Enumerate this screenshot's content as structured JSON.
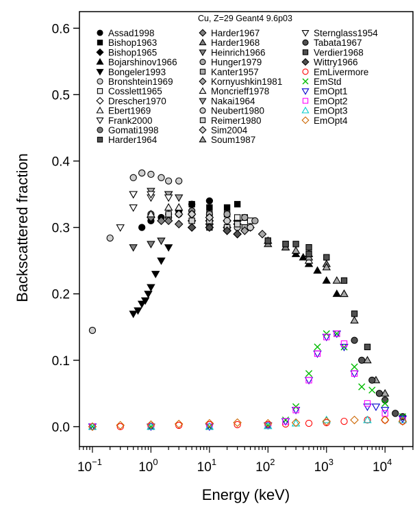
{
  "chart_data": {
    "type": "scatter",
    "title": "Cu, Z=29 Geant4 9.6p03",
    "xlabel": "Energy (keV)",
    "ylabel": "Backscattered fraction",
    "xscale": "log",
    "xlim": [
      0.06,
      30000
    ],
    "ylim": [
      -0.03,
      0.625
    ],
    "xticks": [
      {
        "value": 0.1,
        "base": "10",
        "exp": "−1"
      },
      {
        "value": 1,
        "base": "10",
        "exp": "0"
      },
      {
        "value": 10,
        "base": "10",
        "exp": "1"
      },
      {
        "value": 100,
        "base": "10",
        "exp": "2"
      },
      {
        "value": 1000,
        "base": "10",
        "exp": "3"
      },
      {
        "value": 10000,
        "base": "10",
        "exp": "4"
      }
    ],
    "yticks": [
      "0.0",
      "0.1",
      "0.2",
      "0.3",
      "0.4",
      "0.5",
      "0.6"
    ],
    "grid": false,
    "legend_position": "top",
    "series": [
      {
        "name": "Assad1998",
        "marker": "circle",
        "fill": "#000000",
        "stroke": "#000000",
        "points": [
          [
            0.7,
            0.3
          ],
          [
            1,
            0.31
          ],
          [
            1.5,
            0.315
          ],
          [
            2,
            0.32
          ],
          [
            3,
            0.325
          ],
          [
            5,
            0.335
          ],
          [
            10,
            0.34
          ]
        ]
      },
      {
        "name": "Bishop1963",
        "marker": "square",
        "fill": "#000000",
        "stroke": "#000000",
        "points": [
          [
            5,
            0.335
          ],
          [
            10,
            0.33
          ],
          [
            20,
            0.33
          ],
          [
            30,
            0.335
          ]
        ]
      },
      {
        "name": "Bishop1965",
        "marker": "diamond",
        "fill": "#000000",
        "stroke": "#000000",
        "points": [
          [
            5,
            0.31
          ],
          [
            10,
            0.31
          ],
          [
            20,
            0.31
          ],
          [
            30,
            0.31
          ]
        ]
      },
      {
        "name": "Bojarshinov1966",
        "marker": "triangle-up",
        "fill": "#000000",
        "stroke": "#000000",
        "points": [
          [
            300,
            0.26
          ],
          [
            400,
            0.255
          ],
          [
            500,
            0.245
          ],
          [
            700,
            0.235
          ],
          [
            1000,
            0.22
          ],
          [
            1500,
            0.2
          ]
        ]
      },
      {
        "name": "Bongeler1993",
        "marker": "triangle-down",
        "fill": "#000000",
        "stroke": "#000000",
        "points": [
          [
            0.5,
            0.17
          ],
          [
            0.6,
            0.175
          ],
          [
            0.7,
            0.185
          ],
          [
            0.8,
            0.19
          ],
          [
            0.9,
            0.2
          ],
          [
            1,
            0.21
          ],
          [
            1.2,
            0.23
          ],
          [
            1.5,
            0.25
          ],
          [
            2,
            0.27
          ]
        ]
      },
      {
        "name": "Bronshtein1969",
        "marker": "circle",
        "fill": "#cfcfcf",
        "stroke": "#000000",
        "points": [
          [
            0.1,
            0.145
          ],
          [
            0.2,
            0.284
          ],
          [
            0.5,
            0.375
          ],
          [
            0.7,
            0.382
          ],
          [
            1,
            0.38
          ],
          [
            1.5,
            0.375
          ],
          [
            2,
            0.37
          ],
          [
            3,
            0.37
          ]
        ]
      },
      {
        "name": "Cosslett1965",
        "marker": "square",
        "fill": "#ededed",
        "stroke": "#000000",
        "points": [
          [
            10,
            0.32
          ],
          [
            20,
            0.32
          ],
          [
            30,
            0.315
          ],
          [
            40,
            0.315
          ],
          [
            50,
            0.31
          ]
        ]
      },
      {
        "name": "Drescher1970",
        "marker": "diamond",
        "fill": "#ffffff",
        "stroke": "#000000",
        "points": [
          [
            10,
            0.305
          ],
          [
            20,
            0.31
          ],
          [
            30,
            0.305
          ],
          [
            50,
            0.3
          ]
        ]
      },
      {
        "name": "Ebert1969",
        "marker": "triangle-up",
        "fill": "#ffffff",
        "stroke": "#000000",
        "points": [
          [
            100,
            0.28
          ],
          [
            200,
            0.27
          ],
          [
            500,
            0.25
          ]
        ]
      },
      {
        "name": "Frank2000",
        "marker": "triangle-down",
        "fill": "#ffffff",
        "stroke": "#000000",
        "points": [
          [
            0.3,
            0.3
          ],
          [
            0.5,
            0.33
          ],
          [
            1,
            0.345
          ],
          [
            2,
            0.35
          ]
        ]
      },
      {
        "name": "Gomati1998",
        "marker": "circle",
        "fill": "#808080",
        "stroke": "#000000",
        "points": [
          [
            1,
            0.32
          ],
          [
            2,
            0.315
          ],
          [
            3,
            0.32
          ],
          [
            5,
            0.325
          ]
        ]
      },
      {
        "name": "Harder1964",
        "marker": "square",
        "fill": "#505050",
        "stroke": "#000000",
        "points": [
          [
            100,
            0.28
          ],
          [
            200,
            0.275
          ],
          [
            300,
            0.275
          ],
          [
            500,
            0.27
          ],
          [
            1000,
            0.255
          ],
          [
            2000,
            0.22
          ],
          [
            3000,
            0.17
          ],
          [
            5000,
            0.12
          ]
        ]
      },
      {
        "name": "Harder1967",
        "marker": "diamond",
        "fill": "#808080",
        "stroke": "#000000",
        "points": [
          [
            1,
            0.315
          ],
          [
            1.5,
            0.31
          ],
          [
            2,
            0.31
          ],
          [
            3,
            0.305
          ],
          [
            5,
            0.3
          ],
          [
            10,
            0.3
          ],
          [
            20,
            0.295
          ],
          [
            30,
            0.29
          ]
        ]
      },
      {
        "name": "Harder1968",
        "marker": "triangle-up",
        "fill": "#808080",
        "stroke": "#000000",
        "points": [
          [
            100,
            0.275
          ],
          [
            200,
            0.27
          ],
          [
            500,
            0.26
          ],
          [
            1000,
            0.245
          ],
          [
            2000,
            0.2
          ]
        ]
      },
      {
        "name": "Heinrich1966",
        "marker": "triangle-down",
        "fill": "#808080",
        "stroke": "#000000",
        "points": [
          [
            0.5,
            0.27
          ],
          [
            1,
            0.275
          ],
          [
            1.5,
            0.28
          ]
        ]
      },
      {
        "name": "Hunger1979",
        "marker": "circle",
        "fill": "#a9a9a9",
        "stroke": "#000000",
        "points": [
          [
            5,
            0.32
          ],
          [
            10,
            0.32
          ],
          [
            20,
            0.32
          ],
          [
            40,
            0.315
          ],
          [
            60,
            0.31
          ]
        ]
      },
      {
        "name": "Kanter1957",
        "marker": "square",
        "fill": "#a9a9a9",
        "stroke": "#000000",
        "points": [
          [
            10,
            0.3
          ],
          [
            20,
            0.3
          ],
          [
            40,
            0.3
          ]
        ]
      },
      {
        "name": "Kornyushkin1981",
        "marker": "diamond",
        "fill": "#a9a9a9",
        "stroke": "#000000",
        "points": [
          [
            20,
            0.3
          ],
          [
            40,
            0.295
          ],
          [
            80,
            0.29
          ]
        ]
      },
      {
        "name": "Moncrieff1978",
        "marker": "triangle-up",
        "fill": "#ededed",
        "stroke": "#000000",
        "points": [
          [
            1,
            0.32
          ],
          [
            2,
            0.33
          ],
          [
            3,
            0.33
          ]
        ]
      },
      {
        "name": "Nakai1964",
        "marker": "triangle-down",
        "fill": "#a9a9a9",
        "stroke": "#000000",
        "points": [
          [
            0.5,
            0.35
          ],
          [
            1,
            0.355
          ],
          [
            2,
            0.35
          ],
          [
            3,
            0.345
          ]
        ]
      },
      {
        "name": "Neubert1980",
        "marker": "circle",
        "fill": "#cfcfcf",
        "stroke": "#000000",
        "points": [
          [
            10,
            0.315
          ],
          [
            20,
            0.31
          ],
          [
            30,
            0.3
          ],
          [
            50,
            0.3
          ]
        ]
      },
      {
        "name": "Reimer1980",
        "marker": "square",
        "fill": "#cfcfcf",
        "stroke": "#000000",
        "points": [
          [
            2,
            0.32
          ],
          [
            5,
            0.31
          ],
          [
            10,
            0.31
          ],
          [
            20,
            0.3
          ],
          [
            30,
            0.305
          ]
        ]
      },
      {
        "name": "Sim2004",
        "marker": "diamond",
        "fill": "#cfcfcf",
        "stroke": "#000000",
        "points": [
          [
            3,
            0.32
          ],
          [
            5,
            0.32
          ],
          [
            10,
            0.315
          ]
        ]
      },
      {
        "name": "Soum1987",
        "marker": "triangle-up",
        "fill": "#a9a9a9",
        "stroke": "#000000",
        "points": [
          [
            300,
            0.265
          ],
          [
            500,
            0.255
          ],
          [
            1000,
            0.24
          ],
          [
            1500,
            0.22
          ],
          [
            2000,
            0.2
          ],
          [
            3000,
            0.16
          ],
          [
            5000,
            0.1
          ],
          [
            7000,
            0.07
          ],
          [
            10000,
            0.05
          ]
        ]
      },
      {
        "name": "Sternglass1954",
        "marker": "triangle-down",
        "fill": "#ffffff",
        "stroke": "#000000",
        "points": [
          [
            0.5,
            0.35
          ],
          [
            1,
            0.35
          ],
          [
            2,
            0.345
          ]
        ]
      },
      {
        "name": "Tabata1967",
        "marker": "circle",
        "fill": "#505050",
        "stroke": "#000000",
        "points": [
          [
            3000,
            0.13
          ],
          [
            4000,
            0.1
          ],
          [
            6000,
            0.07
          ],
          [
            8000,
            0.05
          ],
          [
            10000,
            0.04
          ],
          [
            15000,
            0.02
          ],
          [
            20000,
            0.015
          ]
        ]
      },
      {
        "name": "Verdier1968",
        "marker": "square",
        "fill": "#505050",
        "stroke": "#000000",
        "points": [
          [
            100,
            0.28
          ],
          [
            200,
            0.275
          ],
          [
            500,
            0.26
          ]
        ]
      },
      {
        "name": "Wittry1966",
        "marker": "diamond",
        "fill": "#505050",
        "stroke": "#000000",
        "points": [
          [
            5,
            0.3
          ],
          [
            10,
            0.3
          ],
          [
            20,
            0.295
          ],
          [
            30,
            0.29
          ]
        ]
      },
      {
        "name": "EmLivermore",
        "marker": "circle-open",
        "fill": "none",
        "stroke": "#ff0000",
        "points": [
          [
            0.1,
            0
          ],
          [
            0.3,
            0
          ],
          [
            1,
            0.001
          ],
          [
            3,
            0.002
          ],
          [
            10,
            0.003
          ],
          [
            30,
            0.003
          ],
          [
            100,
            0.003
          ],
          [
            200,
            0.004
          ],
          [
            500,
            0.005
          ],
          [
            1000,
            0.006
          ],
          [
            2000,
            0.008
          ],
          [
            5000,
            0.01
          ],
          [
            10000,
            0.01
          ],
          [
            20000,
            0.008
          ]
        ]
      },
      {
        "name": "EmStd",
        "marker": "x",
        "fill": "none",
        "stroke": "#00bb00",
        "points": [
          [
            0.1,
            0
          ],
          [
            1,
            0
          ],
          [
            10,
            0
          ],
          [
            100,
            0.002
          ],
          [
            200,
            0.01
          ],
          [
            300,
            0.03
          ],
          [
            500,
            0.08
          ],
          [
            700,
            0.12
          ],
          [
            1000,
            0.14
          ],
          [
            1500,
            0.14
          ],
          [
            2000,
            0.12
          ],
          [
            3000,
            0.09
          ],
          [
            4000,
            0.06
          ],
          [
            6000,
            0.055
          ],
          [
            10000,
            0.035
          ],
          [
            20000,
            0.015
          ]
        ]
      },
      {
        "name": "EmOpt1",
        "marker": "triangle-down-open",
        "fill": "none",
        "stroke": "#0000cc",
        "points": [
          [
            0.1,
            0
          ],
          [
            1,
            0
          ],
          [
            10,
            0
          ],
          [
            100,
            0.002
          ],
          [
            200,
            0.008
          ],
          [
            300,
            0.025
          ],
          [
            500,
            0.07
          ],
          [
            700,
            0.11
          ],
          [
            1000,
            0.135
          ],
          [
            1500,
            0.14
          ],
          [
            2000,
            0.12
          ],
          [
            3000,
            0.08
          ],
          [
            5000,
            0.03
          ],
          [
            7000,
            0.03
          ],
          [
            10000,
            0.025
          ],
          [
            20000,
            0.012
          ]
        ]
      },
      {
        "name": "EmOpt2",
        "marker": "square-open",
        "fill": "none",
        "stroke": "#ff00ff",
        "points": [
          [
            0.1,
            0
          ],
          [
            1,
            0
          ],
          [
            10,
            0
          ],
          [
            100,
            0.002
          ],
          [
            200,
            0.008
          ],
          [
            300,
            0.025
          ],
          [
            500,
            0.07
          ],
          [
            700,
            0.11
          ],
          [
            1000,
            0.135
          ],
          [
            1500,
            0.14
          ],
          [
            2000,
            0.125
          ],
          [
            3000,
            0.08
          ],
          [
            5000,
            0.035
          ],
          [
            10000,
            0.02
          ],
          [
            20000,
            0.01
          ]
        ]
      },
      {
        "name": "EmOpt3",
        "marker": "triangle-up-open",
        "fill": "none",
        "stroke": "#00cccc",
        "points": [
          [
            0.1,
            0
          ],
          [
            1,
            0
          ],
          [
            10,
            0
          ],
          [
            100,
            0.001
          ],
          [
            300,
            0.005
          ],
          [
            1000,
            0.01
          ],
          [
            5000,
            0.01
          ],
          [
            20000,
            0.01
          ]
        ]
      },
      {
        "name": "EmOpt4",
        "marker": "diamond-open",
        "fill": "none",
        "stroke": "#cc6600",
        "points": [
          [
            0.1,
            0
          ],
          [
            0.3,
            0.002
          ],
          [
            1,
            0.003
          ],
          [
            3,
            0.004
          ],
          [
            10,
            0.005
          ],
          [
            30,
            0.006
          ],
          [
            100,
            0.005
          ],
          [
            300,
            0.006
          ],
          [
            1000,
            0.008
          ],
          [
            3000,
            0.01
          ],
          [
            10000,
            0.01
          ],
          [
            20000,
            0.008
          ]
        ]
      }
    ]
  }
}
